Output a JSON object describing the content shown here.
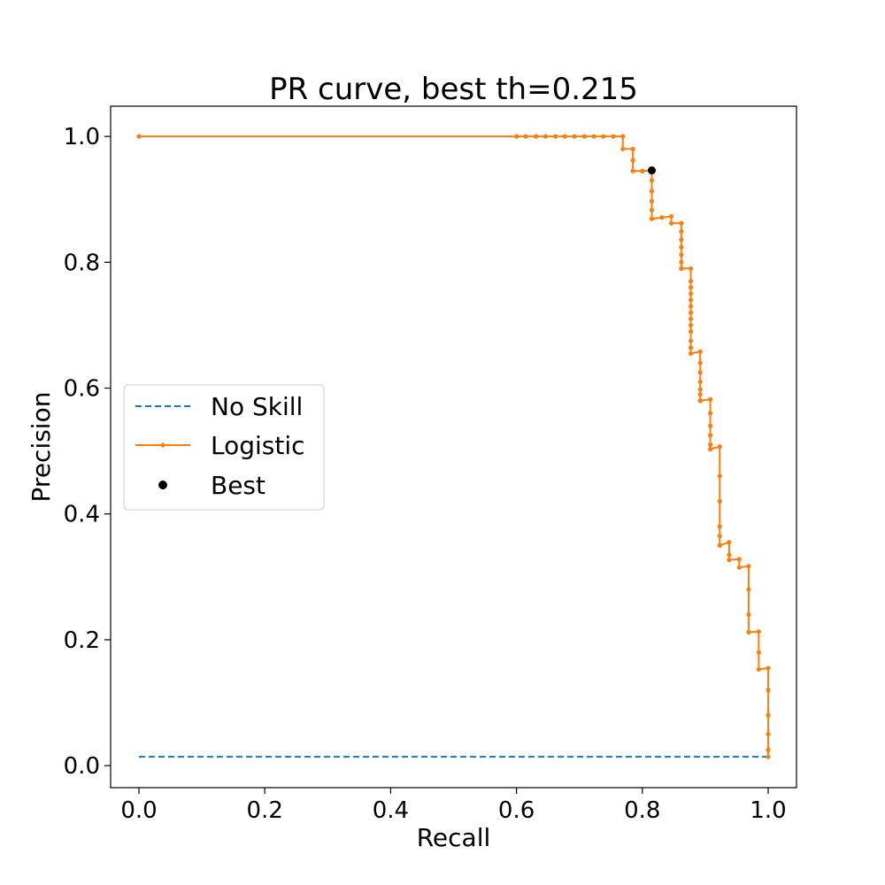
{
  "chart_data": {
    "type": "line",
    "title": "PR curve, best th=0.215",
    "xlabel": "Recall",
    "ylabel": "Precision",
    "xlim": [
      -0.045,
      1.045
    ],
    "ylim": [
      -0.035,
      1.048
    ],
    "xticks": [
      0.0,
      0.2,
      0.4,
      0.6,
      0.8,
      1.0
    ],
    "yticks": [
      0.0,
      0.2,
      0.4,
      0.6,
      0.8,
      1.0
    ],
    "xtick_labels": [
      "0.0",
      "0.2",
      "0.4",
      "0.6",
      "0.8",
      "1.0"
    ],
    "ytick_labels": [
      "0.0",
      "0.2",
      "0.4",
      "0.6",
      "0.8",
      "1.0"
    ],
    "grid": false,
    "legend": {
      "placement": "center-left",
      "entries": [
        "No Skill",
        "Logistic",
        "Best"
      ]
    },
    "series": [
      {
        "name": "No Skill",
        "style": "dashed",
        "color": "#1f77b4",
        "x": [
          0.0,
          1.0
        ],
        "y": [
          0.014,
          0.014
        ]
      },
      {
        "name": "Logistic",
        "style": "solid-with-markers",
        "color": "#ff7f0e",
        "x": [
          0.0,
          0.6,
          0.615,
          0.631,
          0.646,
          0.662,
          0.677,
          0.692,
          0.708,
          0.723,
          0.738,
          0.754,
          0.769,
          0.769,
          0.785,
          0.785,
          0.785,
          0.8,
          0.8,
          0.815,
          0.815,
          0.815,
          0.815,
          0.815,
          0.815,
          0.831,
          0.846,
          0.846,
          0.862,
          0.862,
          0.862,
          0.862,
          0.862,
          0.862,
          0.862,
          0.862,
          0.862,
          0.877,
          0.877,
          0.877,
          0.877,
          0.877,
          0.877,
          0.877,
          0.877,
          0.877,
          0.877,
          0.877,
          0.877,
          0.877,
          0.892,
          0.892,
          0.892,
          0.892,
          0.892,
          0.892,
          0.892,
          0.892,
          0.908,
          0.908,
          0.908,
          0.908,
          0.908,
          0.908,
          0.923,
          0.923,
          0.923,
          0.923,
          0.923,
          0.923,
          0.938,
          0.938,
          0.938,
          0.954,
          0.954,
          0.969,
          0.969,
          0.969,
          0.969,
          0.985,
          0.985,
          0.985,
          1.0,
          1.0,
          1.0,
          1.0,
          1.0,
          1.0
        ],
        "y": [
          1.0,
          1.0,
          1.0,
          1.0,
          1.0,
          1.0,
          1.0,
          1.0,
          1.0,
          1.0,
          1.0,
          1.0,
          1.0,
          0.98,
          0.98,
          0.962,
          0.945,
          0.945,
          0.945,
          0.946,
          0.93,
          0.913,
          0.897,
          0.883,
          0.869,
          0.871,
          0.873,
          0.862,
          0.862,
          0.849,
          0.836,
          0.824,
          0.812,
          0.8,
          0.79,
          0.79,
          0.79,
          0.79,
          0.77,
          0.76,
          0.75,
          0.74,
          0.73,
          0.72,
          0.71,
          0.7,
          0.69,
          0.675,
          0.664,
          0.655,
          0.658,
          0.64,
          0.625,
          0.61,
          0.598,
          0.59,
          0.58,
          0.58,
          0.582,
          0.56,
          0.54,
          0.525,
          0.51,
          0.503,
          0.507,
          0.46,
          0.42,
          0.38,
          0.365,
          0.35,
          0.355,
          0.335,
          0.327,
          0.328,
          0.315,
          0.317,
          0.28,
          0.24,
          0.212,
          0.213,
          0.18,
          0.153,
          0.155,
          0.12,
          0.08,
          0.05,
          0.025,
          0.014
        ]
      }
    ],
    "best_point": {
      "name": "Best",
      "color": "#000000",
      "x": 0.815,
      "y": 0.946
    }
  }
}
